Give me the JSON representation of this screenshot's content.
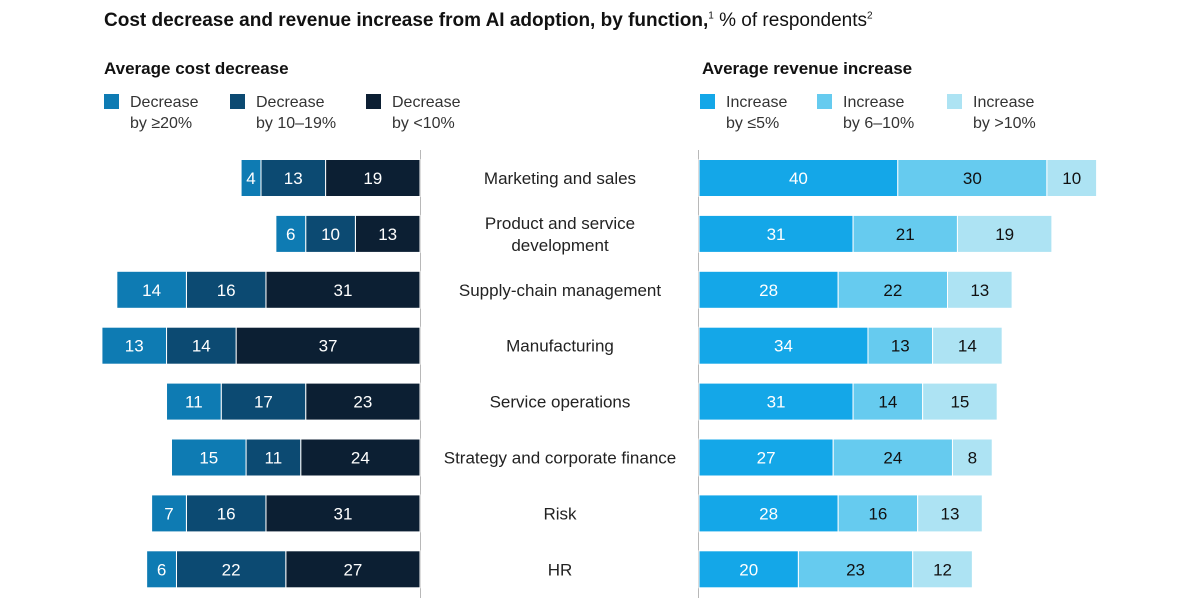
{
  "title": {
    "bold": "Cost decrease and revenue increase from AI adoption, by function,",
    "footnote1": "1",
    "rest": " % of respondents",
    "footnote2": "2"
  },
  "left_panel": {
    "title": "Average cost decrease",
    "legend": [
      {
        "line1": "Decrease",
        "line2": "by ≥20%"
      },
      {
        "line1": "Decrease",
        "line2": "by 10–19%"
      },
      {
        "line1": "Decrease",
        "line2": "by <10%"
      }
    ]
  },
  "right_panel": {
    "title": "Average revenue increase",
    "legend": [
      {
        "line1": "Increase",
        "line2": "by ≤5%"
      },
      {
        "line1": "Increase",
        "line2": "by 6–10%"
      },
      {
        "line1": "Increase",
        "line2": "by >10%"
      }
    ]
  },
  "colors": {
    "cost": [
      "#0e7bb3",
      "#0c4a72",
      "#0c1f33"
    ],
    "revenue": [
      "#14a7e8",
      "#66cbef",
      "#ade3f3"
    ],
    "cost_text": "#ffffff",
    "revenue_text": [
      "#ffffff",
      "#111111",
      "#111111"
    ],
    "axis": "#b8b8b8"
  },
  "chart_data": [
    {
      "type": "bar",
      "orientation": "horizontal-stacked",
      "direction": "leftward",
      "title": "Average cost decrease",
      "categories": [
        "Marketing and sales",
        "Product and service development",
        "Supply-chain management",
        "Manufacturing",
        "Service operations",
        "Strategy and corporate finance",
        "Risk",
        "HR"
      ],
      "series": [
        {
          "name": "Decrease by ≥20%",
          "values": [
            4,
            6,
            14,
            13,
            11,
            15,
            7,
            6
          ]
        },
        {
          "name": "Decrease by 10–19%",
          "values": [
            13,
            10,
            16,
            14,
            17,
            11,
            16,
            22
          ]
        },
        {
          "name": "Decrease by <10%",
          "values": [
            19,
            13,
            31,
            37,
            23,
            24,
            31,
            27
          ]
        }
      ]
    },
    {
      "type": "bar",
      "orientation": "horizontal-stacked",
      "direction": "rightward",
      "title": "Average revenue increase",
      "categories": [
        "Marketing and sales",
        "Product and service development",
        "Supply-chain management",
        "Manufacturing",
        "Service operations",
        "Strategy and corporate finance",
        "Risk",
        "HR"
      ],
      "series": [
        {
          "name": "Increase by ≤5%",
          "values": [
            40,
            31,
            28,
            34,
            31,
            27,
            28,
            20
          ]
        },
        {
          "name": "Increase by 6–10%",
          "values": [
            30,
            21,
            22,
            13,
            14,
            24,
            16,
            23
          ]
        },
        {
          "name": "Increase by >10%",
          "values": [
            10,
            19,
            13,
            14,
            15,
            8,
            13,
            12
          ]
        }
      ]
    }
  ],
  "category_labels": [
    [
      "Marketing and sales"
    ],
    [
      "Product and service",
      "development"
    ],
    [
      "Supply-chain management"
    ],
    [
      "Manufacturing"
    ],
    [
      "Service operations"
    ],
    [
      "Strategy and corporate finance"
    ],
    [
      "Risk"
    ],
    [
      "HR"
    ]
  ]
}
